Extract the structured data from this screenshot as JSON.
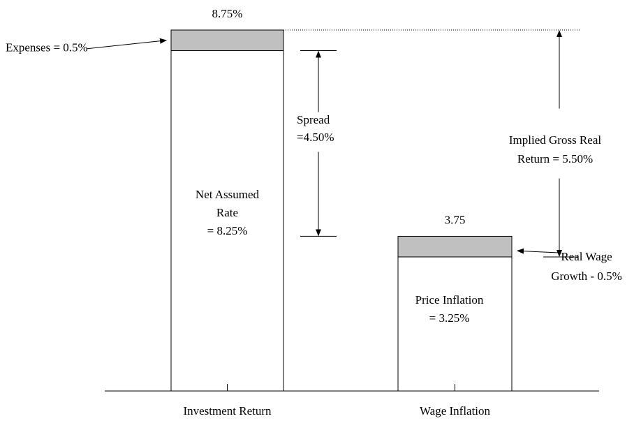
{
  "chart_data": {
    "type": "stacked_bar",
    "categories": [
      "Investment Return",
      "Wage Inflation"
    ],
    "series": [
      {
        "values": [
          8.25,
          3.25
        ],
        "color": "#ffffff",
        "labels": [
          [
            "Net Assumed",
            "Rate",
            "= 8.25%"
          ],
          [
            "Price Inflation",
            "= 3.25%"
          ]
        ]
      },
      {
        "values": [
          0.5,
          0.5
        ],
        "color": "#c0c0c0",
        "labels": [
          [
            "Expenses = 0.5%"
          ],
          [
            "Real Wage",
            "Growth - 0.5%"
          ]
        ]
      }
    ],
    "total_labels": [
      "8.75%",
      "3.75"
    ],
    "annotations": [
      [
        "Spread",
        "=4.50%"
      ],
      [
        "Implied Gross Real",
        "Return = 5.50%"
      ]
    ]
  }
}
